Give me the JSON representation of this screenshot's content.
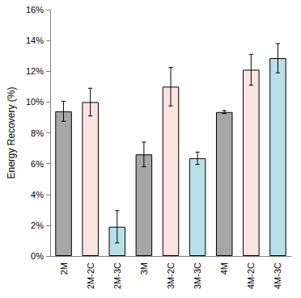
{
  "chart_data": {
    "type": "bar",
    "y_label": "Energy Recovery (%)",
    "categories": [
      "2M",
      "2M-2C",
      "2M-3C",
      "3M",
      "3M-2C",
      "3M-3C",
      "4M",
      "4M-2C",
      "4M-3C"
    ],
    "values": [
      9.4,
      10.0,
      1.9,
      6.6,
      11.0,
      6.35,
      9.35,
      12.1,
      12.85
    ],
    "errors": [
      0.65,
      0.9,
      1.05,
      0.8,
      1.25,
      0.4,
      0.1,
      1.0,
      0.95
    ],
    "colors": [
      "#a6a6a6",
      "#fbe4e0",
      "#b9dfe9",
      "#a6a6a6",
      "#fbe4e0",
      "#b9dfe9",
      "#a6a6a6",
      "#fbe4e0",
      "#b9dfe9"
    ],
    "ylim": [
      0,
      16
    ],
    "yticks": [
      {
        "value": 0,
        "label": "0%"
      },
      {
        "value": 2,
        "label": "2%"
      },
      {
        "value": 4,
        "label": "4%"
      },
      {
        "value": 6,
        "label": "6%"
      },
      {
        "value": 8,
        "label": "8%"
      },
      {
        "value": 10,
        "label": "10%"
      },
      {
        "value": 12,
        "label": "12%"
      },
      {
        "value": 14,
        "label": "14%"
      },
      {
        "value": 16,
        "label": "16%"
      }
    ],
    "grid": false
  }
}
